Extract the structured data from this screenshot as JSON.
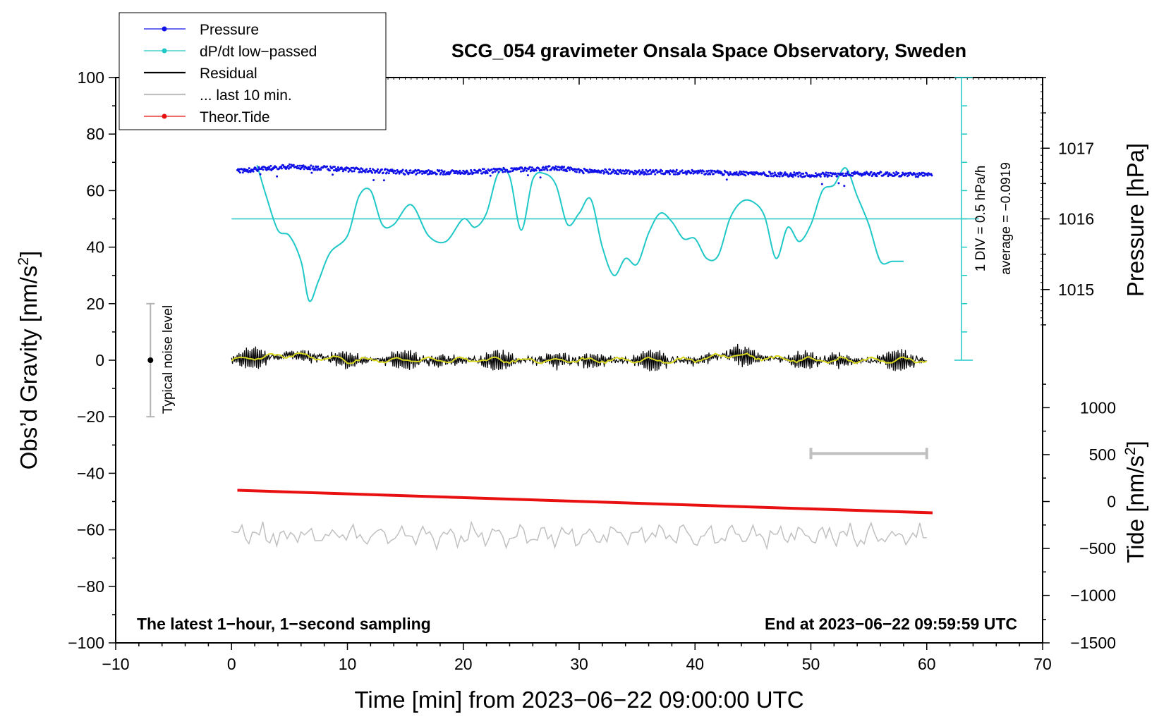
{
  "chart_data": {
    "type": "line",
    "title": "SCG_054 gravimeter Onsala Space Observatory, Sweden",
    "xlabel": "Time [min] from 2023−06−22 09:00:00 UTC",
    "ylabel": "Obs’d Gravity [nm/s²]",
    "ylabel_main": "Obs’d Gravity [nm/s",
    "ylabel_sup": "2",
    "ylabel_close": "]",
    "xlim": [
      -10,
      70
    ],
    "ylim": [
      -100,
      100
    ],
    "xticks": [
      -10,
      0,
      10,
      20,
      30,
      40,
      50,
      60,
      70
    ],
    "xtick_labels": [
      "−10",
      "0",
      "10",
      "20",
      "30",
      "40",
      "50",
      "60",
      "70"
    ],
    "yticks": [
      100,
      80,
      60,
      40,
      20,
      0,
      -20,
      -40,
      -60,
      -80,
      -100
    ],
    "ytick_labels": [
      "100",
      "80",
      "60",
      "40",
      "20",
      "0",
      "−20",
      "−40",
      "−60",
      "−80",
      "−100"
    ],
    "pressure_axis": {
      "label": "Pressure [hPa]",
      "ticks": [
        1017,
        1016,
        1015
      ],
      "tick_labels": [
        "1017",
        "1016",
        "1015"
      ],
      "gravity_at_ticks": [
        75,
        50,
        25
      ]
    },
    "tide_axis": {
      "label_main": "Tide [nm/s",
      "label_sup": "2",
      "label_close": "]",
      "ticks": [
        1000,
        500,
        0,
        -500,
        -1000,
        -1500
      ],
      "tick_labels": [
        "1000",
        "500",
        "0",
        "−500",
        "−1000",
        "−1500"
      ],
      "gravity_at_ticks": [
        -16.8,
        -33.4,
        -50,
        -66.6,
        -83.2,
        -100
      ]
    },
    "dpdt_scale": {
      "label_div": "1 DIV = 0.5 hPa/h",
      "label_avg": "average = −0.0919",
      "x": 63,
      "y_range": [
        0,
        100
      ],
      "divisions": 10,
      "zero_line": 50
    },
    "noise_bar": {
      "label": "Typical noise level",
      "x": -7,
      "y_range": [
        -20,
        20
      ]
    },
    "ten_min_bar": {
      "x_range": [
        50,
        60
      ],
      "y": -33
    },
    "corner_left": "The latest 1−hour, 1−second sampling",
    "corner_right": "End at 2023−06−22 09:59:59 UTC",
    "legend": [
      {
        "name": "Pressure",
        "color": "#1010e8",
        "marker": true
      },
      {
        "name": "dP/dt low−passed",
        "color": "#20c8c8",
        "marker": true
      },
      {
        "name": "Residual",
        "color": "#000000",
        "marker": false
      },
      {
        "name": "... last 10 min.",
        "color": "#c0c0c0",
        "marker": false
      },
      {
        "name": "Theor.Tide",
        "color": "#e81010",
        "marker": true
      }
    ],
    "series": [
      {
        "name": "Pressure",
        "color": "#1010e8",
        "x": [
          0.5,
          5,
          10,
          15,
          20,
          25,
          28,
          30,
          35,
          40,
          45,
          50,
          55,
          60.5
        ],
        "y": [
          67,
          68.5,
          67.5,
          66.5,
          66.5,
          67.5,
          68,
          67,
          66.5,
          66.5,
          66,
          65.5,
          66,
          65.5
        ]
      },
      {
        "name": "dP/dt low−passed",
        "color": "#20c8c8",
        "x": [
          2.2,
          3,
          4,
          5,
          6,
          6.7,
          7.5,
          8.5,
          10,
          11,
          12,
          13,
          14,
          15.5,
          17,
          18.5,
          20,
          21,
          22,
          23,
          24,
          25,
          26,
          27,
          28,
          29,
          30,
          31,
          32,
          33,
          34,
          35,
          36,
          37,
          38,
          39,
          40,
          41,
          42,
          43,
          44,
          45,
          46,
          47,
          48,
          49,
          50,
          51,
          52,
          53,
          54,
          55,
          56,
          57,
          58
        ],
        "y": [
          69,
          58,
          46,
          44,
          35,
          21,
          28,
          38,
          44,
          58,
          60,
          48,
          48,
          55,
          44,
          42,
          50,
          47,
          52,
          66,
          65,
          46,
          64,
          66,
          62,
          48,
          52,
          57,
          40,
          30,
          36,
          34,
          45,
          52,
          49,
          43,
          43,
          36,
          37,
          50,
          56,
          56,
          51,
          36,
          47,
          42,
          48,
          60,
          62,
          68,
          58,
          48,
          35,
          35,
          35
        ]
      },
      {
        "name": "Residual",
        "color": "#000000",
        "x": [
          0,
          5,
          10,
          15,
          20,
          25,
          30,
          35,
          40,
          43,
          45,
          50,
          55,
          60
        ],
        "y": [
          0,
          2,
          0,
          0,
          0,
          0,
          0,
          0,
          0,
          2,
          1,
          0,
          0,
          0
        ]
      },
      {
        "name": "... last 10 min.",
        "color": "#c0c0c0",
        "x": [
          0,
          10,
          20,
          30,
          40,
          50,
          60
        ],
        "y": [
          -62,
          -62,
          -62,
          -62,
          -62,
          -62,
          -62
        ]
      },
      {
        "name": "Theor.Tide",
        "color": "#e81010",
        "x": [
          0.5,
          60.5
        ],
        "y": [
          -46,
          -54
        ]
      }
    ]
  }
}
